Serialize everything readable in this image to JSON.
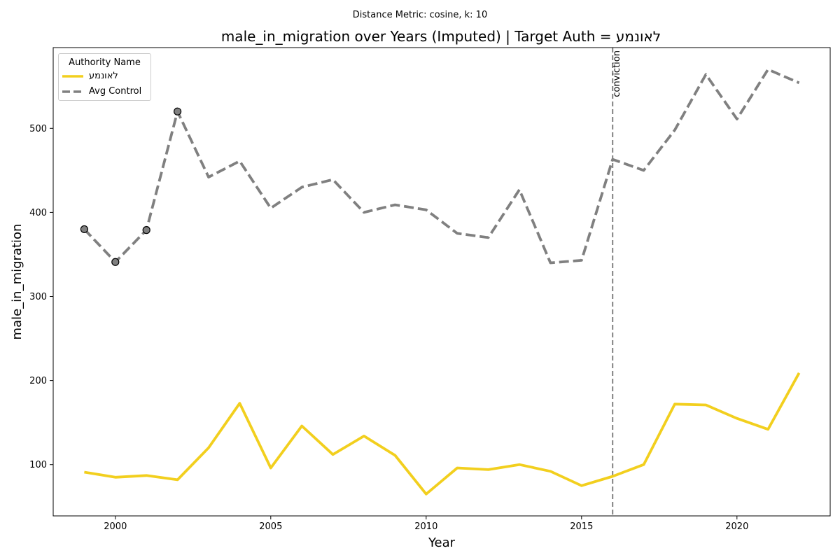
{
  "suptitle": "Distance Metric: cosine, k: 10",
  "title_prefix": "male_in_migration over Years (Imputed) | Target Auth = ",
  "title_target": "לאונמע",
  "legend": {
    "title": "Authority Name",
    "items": [
      "לאונמע",
      "Avg Control"
    ]
  },
  "colors": {
    "target": "#f2cf1e",
    "control": "#808080",
    "marker_edge": "#000000",
    "event_line": "#808080"
  },
  "chart_data": {
    "type": "line",
    "title": "male_in_migration over Years (Imputed) | Target Auth = לאונמע",
    "xlabel": "Year",
    "ylabel": "male_in_migration",
    "xlim": [
      1998,
      2023
    ],
    "ylim": [
      39,
      596
    ],
    "xticks": [
      2000,
      2005,
      2010,
      2015,
      2020
    ],
    "yticks": [
      100,
      200,
      300,
      400,
      500
    ],
    "grid": false,
    "legend_location": "top-left",
    "x": [
      1999,
      2000,
      2001,
      2002,
      2003,
      2004,
      2005,
      2006,
      2007,
      2008,
      2009,
      2010,
      2011,
      2012,
      2013,
      2014,
      2015,
      2016,
      2017,
      2018,
      2019,
      2020,
      2021,
      2022
    ],
    "series": [
      {
        "name": "לאונמע",
        "style": "solid",
        "values": [
          91,
          85,
          87,
          82,
          120,
          173,
          96,
          146,
          112,
          134,
          111,
          65,
          96,
          94,
          100,
          92,
          75,
          86,
          100,
          172,
          171,
          155,
          142,
          209
        ]
      },
      {
        "name": "Avg Control",
        "style": "dashed",
        "values": [
          380,
          341,
          379,
          520,
          442,
          461,
          405,
          430,
          439,
          400,
          409,
          403,
          375,
          370,
          427,
          340,
          343,
          463,
          450,
          498,
          564,
          511,
          570,
          554
        ],
        "imputed_markers_x": [
          1999,
          2000,
          2001,
          2002
        ]
      }
    ],
    "annotations": [
      {
        "type": "vline",
        "x": 2016,
        "label": "conviction"
      }
    ]
  }
}
